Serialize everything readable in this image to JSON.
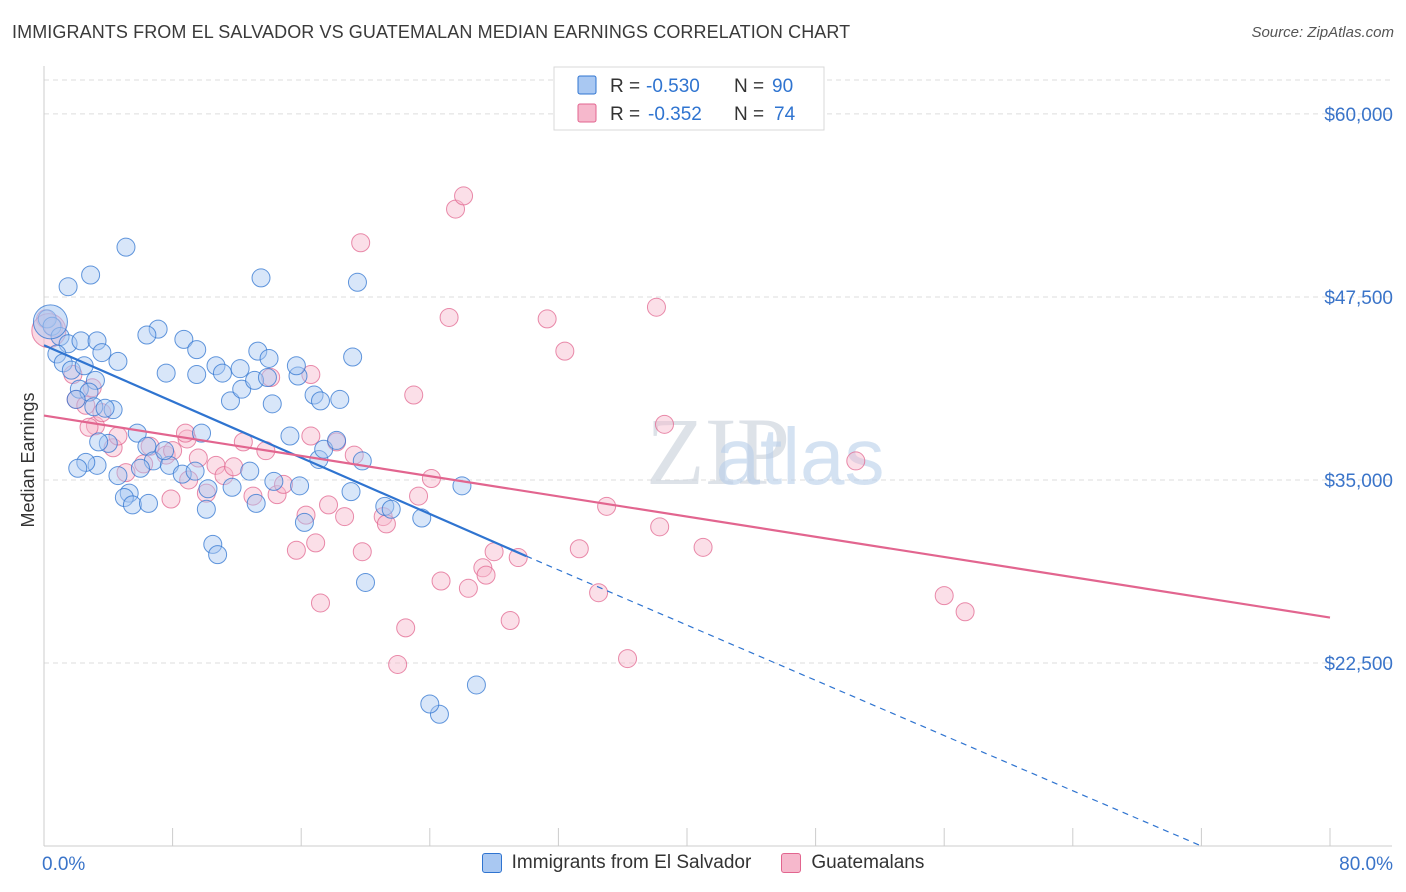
{
  "header": {
    "title": "IMMIGRANTS FROM EL SALVADOR VS GUATEMALAN MEDIAN EARNINGS CORRELATION CHART",
    "source": "Source: ZipAtlas.com"
  },
  "watermark": {
    "part1": "ZIP",
    "part2": "atlas"
  },
  "colors": {
    "blue": "#2f74d0",
    "blue_fill": "#a9c8f2",
    "pink": "#e2658f",
    "pink_fill": "#f6b8cc",
    "grid": "#dddddd",
    "tick_label": "#3a74c9"
  },
  "chart_data": {
    "type": "scatter",
    "title": "IMMIGRANTS FROM EL SALVADOR VS GUATEMALAN MEDIAN EARNINGS CORRELATION CHART",
    "xlabel": "",
    "ylabel": "Median Earnings",
    "xlim": [
      0,
      80
    ],
    "ylim": [
      10000,
      63000
    ],
    "x_tick_labels": [
      "0.0%",
      "80.0%"
    ],
    "y_ticks": [
      22500,
      35000,
      47500,
      60000
    ],
    "y_tick_labels": [
      "$22,500",
      "$35,000",
      "$47,500",
      "$60,000"
    ],
    "grid": true,
    "legend_position": "top-center",
    "stats": [
      {
        "r_label": "R =",
        "r_value": "-0.530",
        "n_label": "N =",
        "n_value": "90"
      },
      {
        "r_label": "R =",
        "r_value": "-0.352",
        "n_label": "N =",
        "n_value": "74"
      }
    ],
    "series": [
      {
        "name": "Immigrants from El Salvador",
        "color": "#2f74d0",
        "trend": {
          "x0": 0,
          "y0": 44200,
          "x1": 30,
          "y1": 29800,
          "dash_x1": 72,
          "dash_y1": 10000
        },
        "points": [
          [
            0.2,
            46000
          ],
          [
            0.5,
            45500
          ],
          [
            1,
            44800
          ],
          [
            1.5,
            44300
          ],
          [
            0.8,
            43600
          ],
          [
            1.2,
            43000
          ],
          [
            2.3,
            44500
          ],
          [
            1.7,
            42500
          ],
          [
            2.2,
            41200
          ],
          [
            2.5,
            42800
          ],
          [
            3.3,
            44500
          ],
          [
            3.6,
            43700
          ],
          [
            3.2,
            41800
          ],
          [
            2.8,
            41000
          ],
          [
            2.0,
            40500
          ],
          [
            3.1,
            40000
          ],
          [
            4.6,
            43100
          ],
          [
            4.3,
            39800
          ],
          [
            3.8,
            39900
          ],
          [
            4.0,
            37500
          ],
          [
            3.4,
            37600
          ],
          [
            3.3,
            36000
          ],
          [
            2.6,
            36200
          ],
          [
            2.1,
            35800
          ],
          [
            4.6,
            35300
          ],
          [
            5.8,
            38200
          ],
          [
            6.4,
            37300
          ],
          [
            5.3,
            34100
          ],
          [
            5.0,
            33800
          ],
          [
            6.8,
            36300
          ],
          [
            6.0,
            35800
          ],
          [
            5.5,
            33300
          ],
          [
            6.5,
            33400
          ],
          [
            7.8,
            36000
          ],
          [
            7.5,
            37000
          ],
          [
            8.6,
            35400
          ],
          [
            9.4,
            35600
          ],
          [
            10.2,
            34400
          ],
          [
            11.7,
            34500
          ],
          [
            10.1,
            33000
          ],
          [
            10.5,
            30600
          ],
          [
            10.8,
            29900
          ],
          [
            9.8,
            38200
          ],
          [
            12.8,
            35600
          ],
          [
            13.2,
            33400
          ],
          [
            14.3,
            34900
          ],
          [
            15.9,
            34600
          ],
          [
            16.2,
            32100
          ],
          [
            15.3,
            38000
          ],
          [
            17.1,
            36400
          ],
          [
            17.4,
            37100
          ],
          [
            18.2,
            37700
          ],
          [
            19.8,
            36300
          ],
          [
            21.2,
            33200
          ],
          [
            19.1,
            34200
          ],
          [
            7.6,
            42300
          ],
          [
            9.5,
            42200
          ],
          [
            10.7,
            42800
          ],
          [
            11.1,
            42300
          ],
          [
            11.6,
            40400
          ],
          [
            12.3,
            41200
          ],
          [
            13.1,
            41800
          ],
          [
            13.9,
            42000
          ],
          [
            14.2,
            40200
          ],
          [
            15.8,
            42100
          ],
          [
            16.8,
            40800
          ],
          [
            17.2,
            40400
          ],
          [
            18.4,
            40500
          ],
          [
            12.2,
            42600
          ],
          [
            13.3,
            43800
          ],
          [
            14.0,
            43300
          ],
          [
            15.7,
            42800
          ],
          [
            19.2,
            43400
          ],
          [
            8.7,
            44600
          ],
          [
            9.5,
            43900
          ],
          [
            7.1,
            45300
          ],
          [
            6.4,
            44900
          ],
          [
            13.5,
            48800
          ],
          [
            19.5,
            48500
          ],
          [
            1.5,
            48200
          ],
          [
            2.9,
            49000
          ],
          [
            5.1,
            50900
          ],
          [
            21.6,
            33000
          ],
          [
            23.5,
            32400
          ],
          [
            26.0,
            34600
          ],
          [
            26.9,
            21000
          ],
          [
            24.6,
            19000
          ],
          [
            24.0,
            19700
          ],
          [
            20.0,
            28000
          ],
          [
            0.4,
            45800
          ]
        ]
      },
      {
        "name": "Guatemalans",
        "color": "#e2658f",
        "trend": {
          "x0": 0,
          "y0": 39400,
          "x1": 80,
          "y1": 25600
        },
        "points": [
          [
            0.1,
            46000
          ],
          [
            0.6,
            45400
          ],
          [
            1.8,
            42200
          ],
          [
            2.0,
            40500
          ],
          [
            2.6,
            40100
          ],
          [
            3.0,
            41300
          ],
          [
            3.2,
            38700
          ],
          [
            3.6,
            39600
          ],
          [
            4.3,
            37200
          ],
          [
            4.6,
            38000
          ],
          [
            5.1,
            35500
          ],
          [
            6.2,
            36100
          ],
          [
            7.6,
            36700
          ],
          [
            8.0,
            37000
          ],
          [
            8.9,
            37800
          ],
          [
            9.0,
            35000
          ],
          [
            9.6,
            36500
          ],
          [
            10.1,
            34100
          ],
          [
            10.7,
            36000
          ],
          [
            11.2,
            35300
          ],
          [
            11.8,
            35900
          ],
          [
            12.4,
            37600
          ],
          [
            13.0,
            33900
          ],
          [
            13.8,
            37000
          ],
          [
            14.1,
            42000
          ],
          [
            14.5,
            34000
          ],
          [
            14.9,
            34700
          ],
          [
            15.7,
            30200
          ],
          [
            16.3,
            32600
          ],
          [
            16.6,
            38000
          ],
          [
            16.9,
            30700
          ],
          [
            17.2,
            26600
          ],
          [
            17.7,
            33300
          ],
          [
            18.2,
            37600
          ],
          [
            18.7,
            32500
          ],
          [
            19.3,
            36700
          ],
          [
            19.8,
            30100
          ],
          [
            21.1,
            32500
          ],
          [
            21.3,
            32000
          ],
          [
            22.0,
            22400
          ],
          [
            22.5,
            24900
          ],
          [
            23.0,
            40800
          ],
          [
            23.3,
            33900
          ],
          [
            24.1,
            35100
          ],
          [
            24.7,
            28100
          ],
          [
            25.2,
            46100
          ],
          [
            25.6,
            53500
          ],
          [
            26.1,
            54400
          ],
          [
            26.4,
            27600
          ],
          [
            27.3,
            29000
          ],
          [
            27.5,
            28500
          ],
          [
            28.0,
            30100
          ],
          [
            29.0,
            25400
          ],
          [
            29.5,
            29700
          ],
          [
            31.3,
            46000
          ],
          [
            32.4,
            43800
          ],
          [
            33.3,
            30300
          ],
          [
            34.5,
            27300
          ],
          [
            35.0,
            33200
          ],
          [
            36.3,
            22800
          ],
          [
            38.1,
            46800
          ],
          [
            38.6,
            38800
          ],
          [
            38.3,
            31800
          ],
          [
            41.0,
            30400
          ],
          [
            50.5,
            36300
          ],
          [
            56.0,
            27100
          ],
          [
            57.3,
            26000
          ],
          [
            2.8,
            38600
          ],
          [
            6.6,
            37300
          ],
          [
            7.9,
            33700
          ],
          [
            8.8,
            38200
          ],
          [
            19.7,
            51200
          ],
          [
            16.6,
            42200
          ],
          [
            0.3,
            45200
          ]
        ]
      }
    ]
  }
}
